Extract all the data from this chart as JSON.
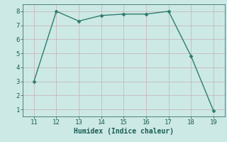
{
  "x": [
    11,
    12,
    13,
    14,
    15,
    16,
    17,
    18,
    19
  ],
  "y": [
    3.0,
    8.0,
    7.3,
    7.7,
    7.8,
    7.8,
    8.0,
    4.8,
    0.9
  ],
  "line_color": "#2e7d6e",
  "marker": "D",
  "marker_size": 2.5,
  "xlabel": "Humidex (Indice chaleur)",
  "xlim": [
    10.5,
    19.5
  ],
  "ylim": [
    0.5,
    8.5
  ],
  "yticks": [
    1,
    2,
    3,
    4,
    5,
    6,
    7,
    8
  ],
  "xticks": [
    11,
    12,
    13,
    14,
    15,
    16,
    17,
    18,
    19
  ],
  "bg_color": "#cce9e5",
  "grid_color": "#c8b8b8",
  "font_color": "#1a5c54",
  "label_fontsize": 7,
  "tick_fontsize": 6.5,
  "xlabel_fontsize": 7
}
